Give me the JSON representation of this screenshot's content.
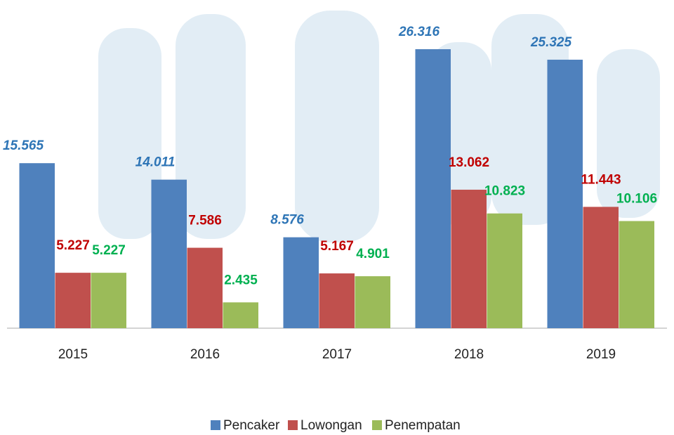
{
  "chart_data": {
    "type": "bar",
    "categories": [
      "2015",
      "2016",
      "2017",
      "2018",
      "2019"
    ],
    "series": [
      {
        "name": "Pencaker",
        "color": "#4f81bd",
        "label_color": "#2e75b6",
        "values": [
          15565,
          14011,
          8576,
          26316,
          25325
        ],
        "value_labels": [
          "15.565",
          "14.011",
          "8.576",
          "26.316",
          "25.325"
        ]
      },
      {
        "name": "Lowongan",
        "color": "#c0504d",
        "label_color": "#c00000",
        "values": [
          5227,
          7586,
          5167,
          13062,
          11443
        ],
        "value_labels": [
          "5.227",
          "7.586",
          "5.167",
          "13.062",
          "11.443"
        ]
      },
      {
        "name": "Penempatan",
        "color": "#9bbb59",
        "label_color": "#00b050",
        "values": [
          5227,
          2435,
          4901,
          10823,
          10106
        ],
        "value_labels": [
          "5.227",
          "2.435",
          "4.901",
          "10.823",
          "10.106"
        ]
      }
    ]
  }
}
